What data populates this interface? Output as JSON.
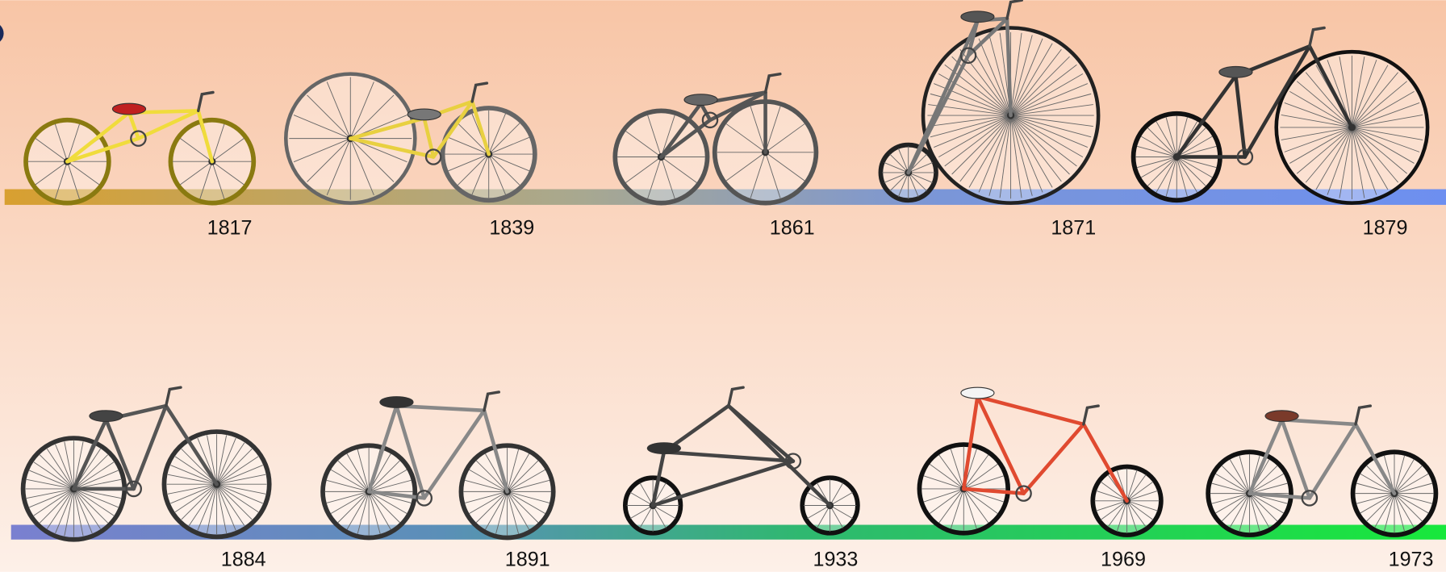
{
  "rows": [
    [
      "1817",
      "1839",
      "1861",
      "1871",
      "1879"
    ],
    [
      "1884",
      "1891",
      "1933",
      "1969",
      "1973"
    ]
  ]
}
